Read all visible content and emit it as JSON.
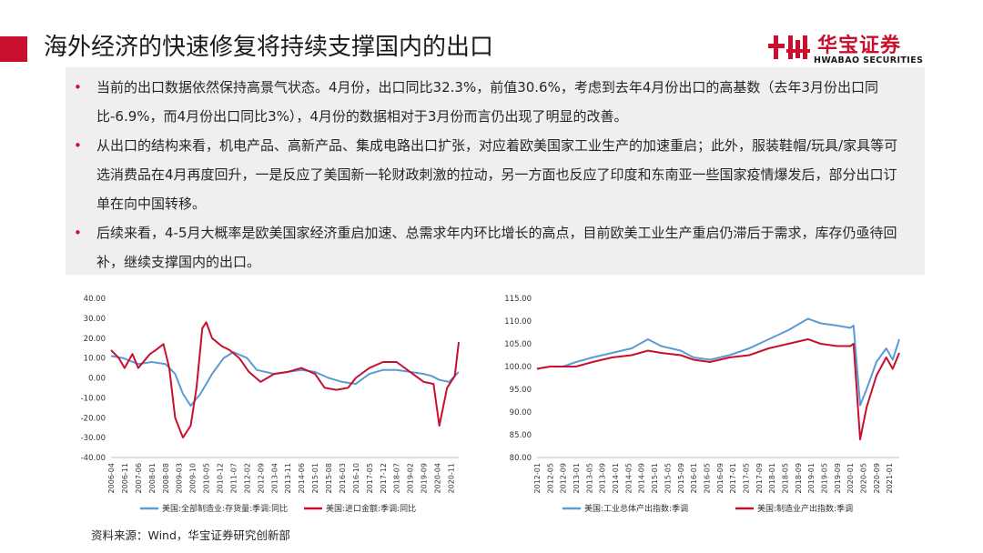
{
  "header": {
    "title": "海外经济的快速修复将持续支撑国内的出口",
    "logo_cn": "华宝证券",
    "logo_en": "HWABAO SECURITIES"
  },
  "bullets": [
    {
      "text": "当前的出口数据依然保持高景气状态。4月份，出口同比32.3%，前值30.6%，考虑到去年4月份出口的高基数（去年3月份出口同比-6.9%，而4月份出口同比3%），4月份的数据相对于3月份而言仍出现了明显的改善。"
    },
    {
      "text": "从出口的结构来看，机电产品、高新产品、集成电路出口扩张，对应着欧美国家工业生产的加速重启；此外，服装鞋帽/玩具/家具等可选消费品在4月再度回升，一是反应了美国新一轮财政刺激的拉动，另一方面也反应了印度和东南亚一些国家疫情爆发后，部分出口订单在向中国转移。"
    },
    {
      "text": "后续来看，4-5月大概率是欧美国家经济重启加速、总需求年内环比增长的高点，目前欧美工业生产重启仍滞后于需求，库存仍亟待回补，继续支撑国内的出口。"
    }
  ],
  "source": "资料来源：Wind，华宝证券研究创新部",
  "chart_data": [
    {
      "type": "line",
      "ylim": [
        -40,
        40
      ],
      "yticks": [
        "40.00",
        "30.00",
        "20.00",
        "10.00",
        "0.00",
        "-10.00",
        "-20.00",
        "-30.00",
        "-40.00"
      ],
      "xticks": [
        "2006-04",
        "2006-11",
        "2007-06",
        "2008-01",
        "2008-08",
        "2009-03",
        "2009-10",
        "2010-05",
        "2010-12",
        "2011-07",
        "2012-02",
        "2012-09",
        "2013-04",
        "2013-11",
        "2014-06",
        "2015-01",
        "2015-08",
        "2016-03",
        "2016-10",
        "2017-05",
        "2017-12",
        "2018-07",
        "2019-02",
        "2019-09",
        "2020-04",
        "2020-11"
      ],
      "x_start": "2006-04",
      "x_end": "2021-03",
      "colors": {
        "blue": "#5b9bd5",
        "red": "#c8102e"
      },
      "series": [
        {
          "name": "美国:全部制造业:存货量:季调:同比",
          "color": "#5b9bd5",
          "points": [
            [
              "2006-04",
              11
            ],
            [
              "2006-10",
              10
            ],
            [
              "2007-06",
              7
            ],
            [
              "2008-01",
              8
            ],
            [
              "2008-08",
              7
            ],
            [
              "2009-01",
              2
            ],
            [
              "2009-05",
              -8
            ],
            [
              "2009-09",
              -14
            ],
            [
              "2010-02",
              -8
            ],
            [
              "2010-08",
              2
            ],
            [
              "2011-02",
              10
            ],
            [
              "2011-07",
              13
            ],
            [
              "2012-02",
              10
            ],
            [
              "2012-07",
              4
            ],
            [
              "2013-04",
              2
            ],
            [
              "2013-11",
              3
            ],
            [
              "2014-06",
              4
            ],
            [
              "2015-01",
              3
            ],
            [
              "2015-08",
              0
            ],
            [
              "2016-03",
              -2
            ],
            [
              "2016-10",
              -3
            ],
            [
              "2017-05",
              2
            ],
            [
              "2017-12",
              4
            ],
            [
              "2018-07",
              4
            ],
            [
              "2019-02",
              3
            ],
            [
              "2019-09",
              2
            ],
            [
              "2020-01",
              1
            ],
            [
              "2020-05",
              -1
            ],
            [
              "2020-10",
              -2
            ],
            [
              "2021-03",
              3
            ]
          ]
        },
        {
          "name": "美国:进口金额:季调:同比",
          "color": "#c8102e",
          "points": [
            [
              "2006-04",
              14
            ],
            [
              "2006-08",
              10
            ],
            [
              "2006-11",
              5
            ],
            [
              "2007-03",
              12
            ],
            [
              "2007-06",
              5
            ],
            [
              "2007-12",
              12
            ],
            [
              "2008-03",
              14
            ],
            [
              "2008-07",
              17
            ],
            [
              "2008-10",
              5
            ],
            [
              "2009-01",
              -20
            ],
            [
              "2009-05",
              -30
            ],
            [
              "2009-09",
              -24
            ],
            [
              "2009-12",
              -5
            ],
            [
              "2010-03",
              25
            ],
            [
              "2010-05",
              28
            ],
            [
              "2010-08",
              20
            ],
            [
              "2011-01",
              16
            ],
            [
              "2011-05",
              14
            ],
            [
              "2011-10",
              10
            ],
            [
              "2012-03",
              3
            ],
            [
              "2012-09",
              -2
            ],
            [
              "2013-04",
              2
            ],
            [
              "2013-11",
              3
            ],
            [
              "2014-06",
              5
            ],
            [
              "2015-01",
              2
            ],
            [
              "2015-06",
              -5
            ],
            [
              "2015-12",
              -6
            ],
            [
              "2016-06",
              -5
            ],
            [
              "2016-10",
              0
            ],
            [
              "2017-05",
              5
            ],
            [
              "2017-12",
              8
            ],
            [
              "2018-07",
              8
            ],
            [
              "2019-02",
              3
            ],
            [
              "2019-09",
              -2
            ],
            [
              "2020-02",
              -3
            ],
            [
              "2020-05",
              -24
            ],
            [
              "2020-09",
              -5
            ],
            [
              "2021-01",
              1
            ],
            [
              "2021-03",
              18
            ]
          ]
        }
      ]
    },
    {
      "type": "line",
      "ylim": [
        80,
        115
      ],
      "yticks": [
        "115.00",
        "110.00",
        "105.00",
        "100.00",
        "95.00",
        "90.00",
        "85.00",
        "80.00"
      ],
      "xticks": [
        "2012-01",
        "2012-05",
        "2012-09",
        "2013-01",
        "2013-05",
        "2013-09",
        "2014-01",
        "2014-05",
        "2014-09",
        "2015-01",
        "2015-05",
        "2015-09",
        "2016-01",
        "2016-05",
        "2016-09",
        "2017-01",
        "2017-05",
        "2017-09",
        "2018-01",
        "2018-05",
        "2018-09",
        "2019-01",
        "2019-05",
        "2019-09",
        "2020-01",
        "2020-05",
        "2020-09",
        "2021-01"
      ],
      "x_start": "2012-01",
      "x_end": "2021-04",
      "series": [
        {
          "name": "美国:工业总体产出指数:季调",
          "color": "#5b9bd5",
          "points": [
            [
              "2012-01",
              99.5
            ],
            [
              "2012-05",
              100
            ],
            [
              "2012-09",
              100
            ],
            [
              "2013-01",
              101
            ],
            [
              "2013-06",
              102
            ],
            [
              "2013-12",
              103
            ],
            [
              "2014-06",
              104
            ],
            [
              "2014-11",
              106
            ],
            [
              "2015-03",
              104.5
            ],
            [
              "2015-09",
              103.5
            ],
            [
              "2016-01",
              102
            ],
            [
              "2016-06",
              101.5
            ],
            [
              "2016-12",
              102.5
            ],
            [
              "2017-06",
              104
            ],
            [
              "2017-12",
              106
            ],
            [
              "2018-06",
              108
            ],
            [
              "2018-12",
              110.5
            ],
            [
              "2019-04",
              109.5
            ],
            [
              "2019-09",
              109
            ],
            [
              "2020-01",
              108.5
            ],
            [
              "2020-02",
              109
            ],
            [
              "2020-04",
              91.5
            ],
            [
              "2020-06",
              95
            ],
            [
              "2020-09",
              101
            ],
            [
              "2020-12",
              104
            ],
            [
              "2021-02",
              101.5
            ],
            [
              "2021-04",
              106
            ]
          ]
        },
        {
          "name": "美国:制造业产出指数:季调",
          "color": "#c8102e",
          "points": [
            [
              "2012-01",
              99.5
            ],
            [
              "2012-05",
              100
            ],
            [
              "2012-09",
              100
            ],
            [
              "2013-01",
              100
            ],
            [
              "2013-06",
              101
            ],
            [
              "2013-12",
              102
            ],
            [
              "2014-06",
              102.5
            ],
            [
              "2014-11",
              103.5
            ],
            [
              "2015-03",
              103
            ],
            [
              "2015-09",
              102.5
            ],
            [
              "2016-01",
              101.5
            ],
            [
              "2016-06",
              101
            ],
            [
              "2016-12",
              102
            ],
            [
              "2017-06",
              102.5
            ],
            [
              "2017-12",
              104
            ],
            [
              "2018-06",
              105
            ],
            [
              "2018-12",
              106
            ],
            [
              "2019-04",
              105
            ],
            [
              "2019-09",
              104.5
            ],
            [
              "2020-01",
              104.5
            ],
            [
              "2020-02",
              105
            ],
            [
              "2020-04",
              84
            ],
            [
              "2020-06",
              91
            ],
            [
              "2020-09",
              98
            ],
            [
              "2020-12",
              102
            ],
            [
              "2021-02",
              99.5
            ],
            [
              "2021-04",
              103
            ]
          ]
        }
      ]
    }
  ]
}
